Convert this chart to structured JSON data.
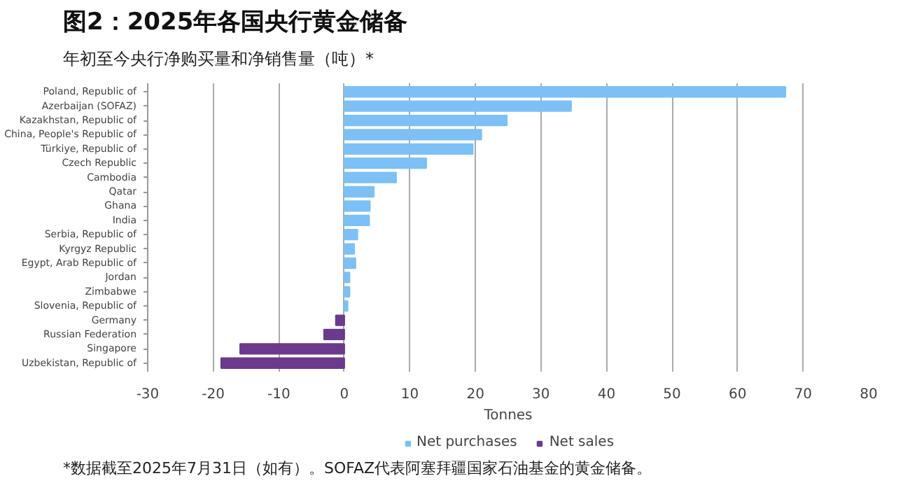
{
  "chart_data": {
    "type": "bar",
    "orientation": "horizontal",
    "title": "图2：2025年各国央行黄金储备",
    "subtitle": "年初至今央行净购买量和净销售量（吨）*",
    "xlabel": "Tonnes",
    "categories": [
      "Poland, Republic of",
      "Azerbaijan (SOFAZ)",
      "Kazakhstan, Republic of",
      "China, People's Republic of",
      "Türkiye, Republic of",
      "Czech Republic",
      "Cambodia",
      "Qatar",
      "Ghana",
      "India",
      "Serbia, Republic of",
      "Kyrgyz Republic",
      "Egypt, Arab Republic of",
      "Jordan",
      "Zimbabwe",
      "Slovenia, Republic of",
      "Germany",
      "Russian Federation",
      "Singapore",
      "Uzbekistan, Republic of"
    ],
    "series": [
      {
        "name": "Net purchases",
        "color": "#7cc0f5",
        "values": [
          67.3,
          34.6,
          24.8,
          20.9,
          19.6,
          12.5,
          7.9,
          4.5,
          3.9,
          3.8,
          2.0,
          1.5,
          1.7,
          0.8,
          0.8,
          0.5,
          null,
          null,
          null,
          null
        ]
      },
      {
        "name": "Net sales",
        "color": "#6b3a8c",
        "values": [
          null,
          null,
          null,
          null,
          null,
          null,
          null,
          null,
          null,
          null,
          null,
          null,
          null,
          null,
          null,
          null,
          -1.3,
          -3.1,
          -15.9,
          -18.8
        ]
      }
    ],
    "xlim": [
      -30,
      80
    ],
    "xticks": [
      -30,
      -20,
      -10,
      0,
      10,
      20,
      30,
      40,
      50,
      60,
      70,
      80
    ],
    "grid": "x",
    "legend": "bottom",
    "annotations": [
      "*数据截至2025年7月31日（如有）。SOFAZ代表阿塞拜疆国家石油基金的黄金储备。"
    ]
  }
}
